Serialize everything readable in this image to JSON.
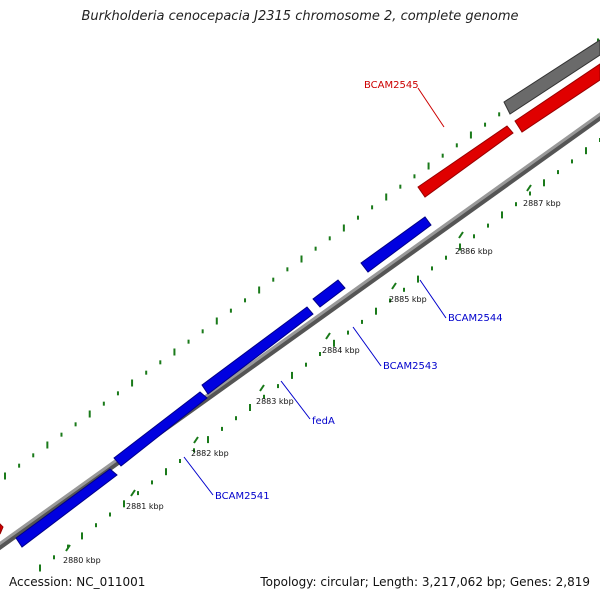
{
  "title": "Burkholderia cenocepacia J2315 chromosome 2, complete genome",
  "footer": {
    "accession": "Accession: NC_011001",
    "summary": "Topology: circular; Length: 3,217,062 bp; Genes: 2,819"
  },
  "colors": {
    "forward_gene": "#ff0000",
    "reverse_gene": "#0000ff",
    "other_feature": "#666666",
    "backbone": "#888888",
    "gc_dots": "#1a7a1a",
    "label_forward": "#cc0000",
    "label_reverse": "#0000cc"
  },
  "tick_labels": [
    "2880 kbp",
    "2881 kbp",
    "2882 kbp",
    "2883 kbp",
    "2884 kbp",
    "2885 kbp",
    "2886 kbp",
    "2887 kbp"
  ],
  "genes": [
    {
      "name": "BCAM2541",
      "strand": "reverse"
    },
    {
      "name": "fedA",
      "strand": "reverse"
    },
    {
      "name": "BCAM2543",
      "strand": "reverse"
    },
    {
      "name": "BCAM2544",
      "strand": "reverse"
    },
    {
      "name": "BCAM2545",
      "strand": "forward"
    }
  ]
}
